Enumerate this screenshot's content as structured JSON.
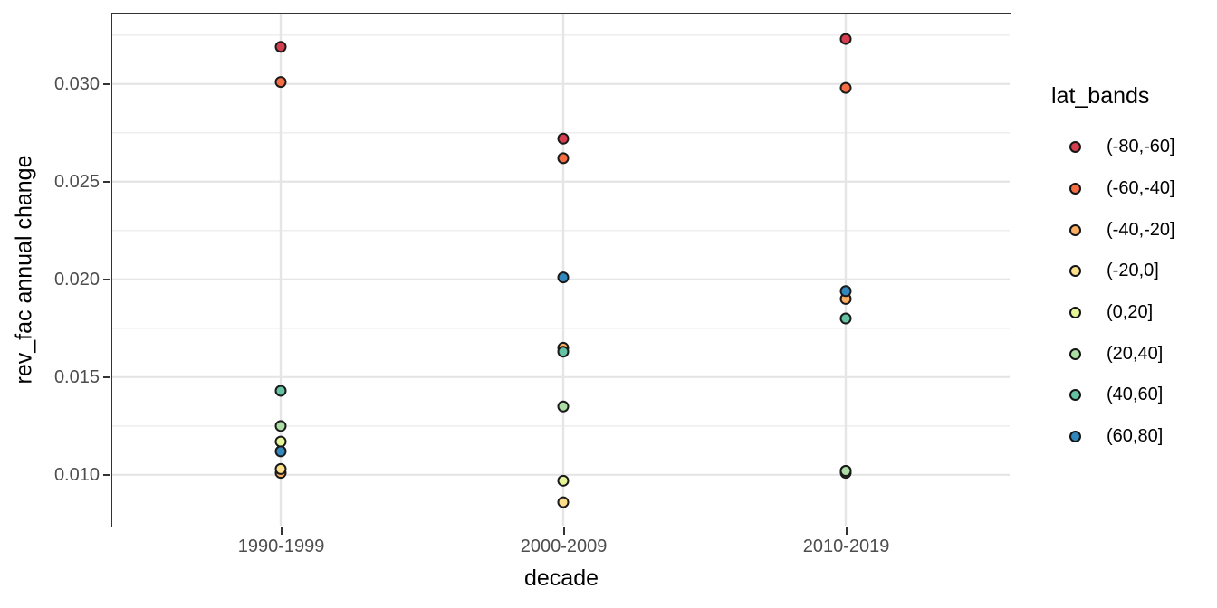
{
  "chart_data": {
    "type": "scatter",
    "title": "",
    "xlabel": "decade",
    "ylabel": "rev_fac annual change",
    "legend_title": "lat_bands",
    "legend_position": "right",
    "x_categories": [
      "1990-1999",
      "2000-2009",
      "2010-2019"
    ],
    "y_ticks": [
      0.03,
      0.025,
      0.02,
      0.015,
      0.01
    ],
    "y_tick_labels": [
      "0.030",
      "0.025",
      "0.020",
      "0.015",
      "0.010"
    ],
    "y_minor_ticks": [
      0.0325,
      0.0275,
      0.0225,
      0.0175,
      0.0125
    ],
    "ylim": [
      0.0074,
      0.0336
    ],
    "grid": "on",
    "series": [
      {
        "name": "(-80,-60]",
        "color": "#d53e4f",
        "values": [
          0.0319,
          0.0272,
          0.0323
        ]
      },
      {
        "name": "(-60,-40]",
        "color": "#f46d43",
        "values": [
          0.0301,
          0.0262,
          0.0298
        ]
      },
      {
        "name": "(-40,-20]",
        "color": "#fdae61",
        "values": [
          0.0101,
          0.0165,
          0.019
        ]
      },
      {
        "name": "(-20,0]",
        "color": "#fee08b",
        "values": [
          0.0103,
          0.0086,
          0.0101
        ]
      },
      {
        "name": "(0,20]",
        "color": "#e6f598",
        "values": [
          0.0117,
          0.0097,
          0.0102
        ]
      },
      {
        "name": "(20,40]",
        "color": "#abdda4",
        "values": [
          0.0125,
          0.0135,
          0.0102
        ]
      },
      {
        "name": "(40,60]",
        "color": "#66c2a5",
        "values": [
          0.0143,
          0.0163,
          0.018
        ]
      },
      {
        "name": "(60,80]",
        "color": "#3288bd",
        "values": [
          0.0112,
          0.0201,
          0.0194
        ]
      }
    ],
    "style": {
      "point_stroke": "#1a1a1a",
      "major_grid_color": "#e5e5e5",
      "minor_grid_color": "#eeeeee",
      "panel_border_color": "#333333",
      "tick_label_color": "#4d4d4d"
    }
  }
}
